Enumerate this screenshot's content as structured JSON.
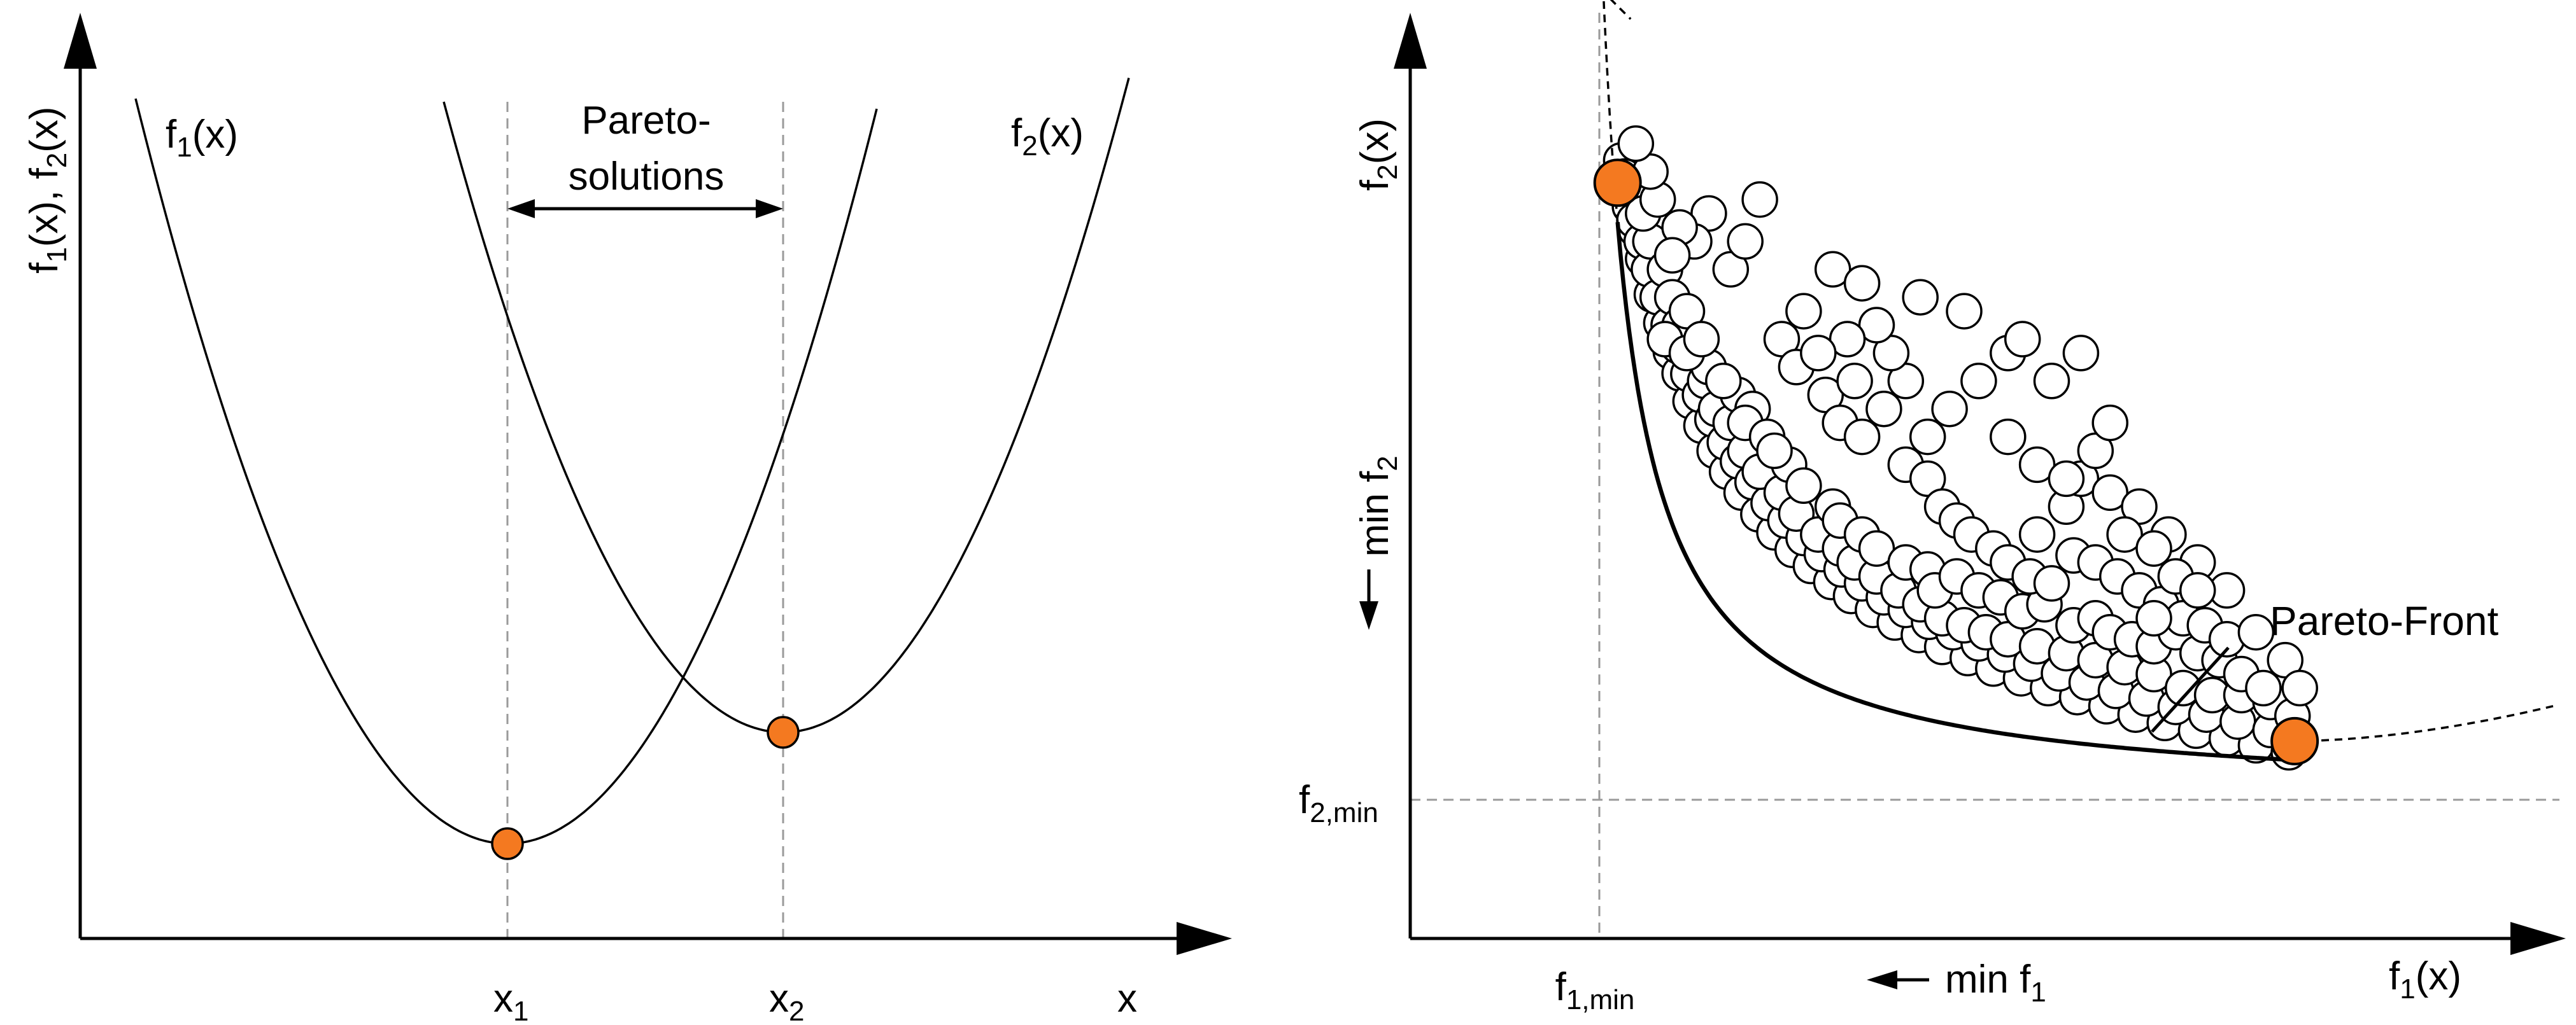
{
  "colors": {
    "highlight": "#F47920",
    "line": "#000000",
    "guide": "#9A9A9A",
    "background": "#FFFFFF"
  },
  "left_panel": {
    "y_axis_label": {
      "f1": "f",
      "s1": "1",
      "mid": "(x), f",
      "s2": "2",
      "end": "(x)"
    },
    "curve1_label": {
      "base": "f",
      "sub": "1",
      "end": "(x)"
    },
    "curve2_label": {
      "base": "f",
      "sub": "2",
      "end": "(x)"
    },
    "pareto_label_line1": "Pareto-",
    "pareto_label_line2": "solutions",
    "x1_label": {
      "base": "x",
      "sub": "1"
    },
    "x2_label": {
      "base": "x",
      "sub": "2"
    },
    "x_axis_label": "x"
  },
  "right_panel": {
    "y_axis_label": {
      "base": "f",
      "sub": "2",
      "end": "(x)"
    },
    "x_axis_label": {
      "base": "f",
      "sub": "1",
      "end": "(x)"
    },
    "min_f2_label": {
      "base": "min f",
      "sub": "2"
    },
    "min_f1_label": {
      "base": "min f",
      "sub": "1"
    },
    "f2min_label": {
      "base": "f",
      "sub": "2,min"
    },
    "f1min_label": {
      "base": "f",
      "sub": "1,min"
    },
    "pareto_front_label": "Pareto-Front"
  },
  "chart_data": {
    "type": "scatter",
    "title": "",
    "xlabel": "f1(x)",
    "ylabel": "f2(x)",
    "xlim": [
      0,
      1
    ],
    "ylim": [
      0,
      1
    ],
    "pareto_front": {
      "a": 0.0566,
      "b": 0.0434,
      "ideal_point": [
        0,
        0
      ]
    },
    "extreme_points": [
      [
        0.025,
        0.884
      ],
      [
        0.953,
        0.084
      ]
    ],
    "points": [
      [
        0.03,
        0.916
      ],
      [
        0.035,
        0.893
      ],
      [
        0.042,
        0.85
      ],
      [
        0.05,
        0.817
      ],
      [
        0.06,
        0.775
      ],
      [
        0.072,
        0.724
      ],
      [
        0.085,
        0.683
      ],
      [
        0.098,
        0.642
      ],
      [
        0.11,
        0.611
      ],
      [
        0.125,
        0.571
      ],
      [
        0.14,
        0.536
      ],
      [
        0.158,
        0.5
      ],
      [
        0.175,
        0.47
      ],
      [
        0.195,
        0.44
      ],
      [
        0.218,
        0.409
      ],
      [
        0.24,
        0.383
      ],
      [
        0.265,
        0.358
      ],
      [
        0.29,
        0.335
      ],
      [
        0.318,
        0.312
      ],
      [
        0.345,
        0.292
      ],
      [
        0.375,
        0.272
      ],
      [
        0.405,
        0.254
      ],
      [
        0.438,
        0.236
      ],
      [
        0.47,
        0.219
      ],
      [
        0.505,
        0.203
      ],
      [
        0.54,
        0.188
      ],
      [
        0.578,
        0.174
      ],
      [
        0.615,
        0.16
      ],
      [
        0.655,
        0.147
      ],
      [
        0.695,
        0.134
      ],
      [
        0.735,
        0.122
      ],
      [
        0.775,
        0.11
      ],
      [
        0.818,
        0.099
      ],
      [
        0.86,
        0.088
      ],
      [
        0.9,
        0.078
      ],
      [
        0.945,
        0.068
      ],
      [
        0.04,
        0.88
      ],
      [
        0.048,
        0.83
      ],
      [
        0.058,
        0.8
      ],
      [
        0.068,
        0.76
      ],
      [
        0.08,
        0.72
      ],
      [
        0.095,
        0.68
      ],
      [
        0.108,
        0.65
      ],
      [
        0.122,
        0.61
      ],
      [
        0.138,
        0.58
      ],
      [
        0.155,
        0.545
      ],
      [
        0.172,
        0.512
      ],
      [
        0.19,
        0.485
      ],
      [
        0.21,
        0.455
      ],
      [
        0.232,
        0.425
      ],
      [
        0.255,
        0.4
      ],
      [
        0.28,
        0.375
      ],
      [
        0.305,
        0.352
      ],
      [
        0.332,
        0.33
      ],
      [
        0.36,
        0.31
      ],
      [
        0.39,
        0.29
      ],
      [
        0.42,
        0.272
      ],
      [
        0.452,
        0.255
      ],
      [
        0.485,
        0.24
      ],
      [
        0.52,
        0.224
      ],
      [
        0.556,
        0.208
      ],
      [
        0.592,
        0.195
      ],
      [
        0.63,
        0.181
      ],
      [
        0.668,
        0.168
      ],
      [
        0.708,
        0.156
      ],
      [
        0.75,
        0.145
      ],
      [
        0.79,
        0.133
      ],
      [
        0.832,
        0.122
      ],
      [
        0.875,
        0.112
      ],
      [
        0.92,
        0.1
      ],
      [
        0.07,
        0.8
      ],
      [
        0.09,
        0.76
      ],
      [
        0.1,
        0.72
      ],
      [
        0.11,
        0.68
      ],
      [
        0.13,
        0.64
      ],
      [
        0.145,
        0.6
      ],
      [
        0.16,
        0.56
      ],
      [
        0.18,
        0.54
      ],
      [
        0.2,
        0.5
      ],
      [
        0.22,
        0.47
      ],
      [
        0.25,
        0.44
      ],
      [
        0.27,
        0.41
      ],
      [
        0.3,
        0.38
      ],
      [
        0.33,
        0.36
      ],
      [
        0.35,
        0.34
      ],
      [
        0.38,
        0.32
      ],
      [
        0.41,
        0.3
      ],
      [
        0.44,
        0.28
      ],
      [
        0.47,
        0.26
      ],
      [
        0.5,
        0.25
      ],
      [
        0.53,
        0.24
      ],
      [
        0.56,
        0.23
      ],
      [
        0.6,
        0.22
      ],
      [
        0.64,
        0.21
      ],
      [
        0.68,
        0.2
      ],
      [
        0.72,
        0.19
      ],
      [
        0.76,
        0.18
      ],
      [
        0.8,
        0.16
      ],
      [
        0.84,
        0.15
      ],
      [
        0.88,
        0.15
      ],
      [
        0.92,
        0.14
      ],
      [
        0.95,
        0.12
      ],
      [
        0.06,
        0.84
      ],
      [
        0.12,
        0.7
      ],
      [
        0.09,
        0.66
      ],
      [
        0.15,
        0.62
      ],
      [
        0.19,
        0.58
      ],
      [
        0.21,
        0.56
      ],
      [
        0.12,
        0.64
      ],
      [
        0.14,
        0.66
      ],
      [
        0.17,
        0.6
      ],
      [
        0.2,
        0.54
      ],
      [
        0.23,
        0.52
      ],
      [
        0.26,
        0.48
      ],
      [
        0.28,
        0.45
      ],
      [
        0.24,
        0.5
      ],
      [
        0.32,
        0.42
      ],
      [
        0.33,
        0.4
      ],
      [
        0.36,
        0.38
      ],
      [
        0.38,
        0.36
      ],
      [
        0.42,
        0.34
      ],
      [
        0.45,
        0.33
      ],
      [
        0.46,
        0.3
      ],
      [
        0.49,
        0.32
      ],
      [
        0.52,
        0.3
      ],
      [
        0.55,
        0.29
      ],
      [
        0.58,
        0.27
      ],
      [
        0.61,
        0.28
      ],
      [
        0.65,
        0.25
      ],
      [
        0.68,
        0.26
      ],
      [
        0.7,
        0.24
      ],
      [
        0.73,
        0.23
      ],
      [
        0.76,
        0.22
      ],
      [
        0.79,
        0.24
      ],
      [
        0.82,
        0.21
      ],
      [
        0.85,
        0.2
      ],
      [
        0.88,
        0.18
      ],
      [
        0.91,
        0.16
      ],
      [
        0.25,
        0.66
      ],
      [
        0.27,
        0.62
      ],
      [
        0.31,
        0.58
      ],
      [
        0.33,
        0.54
      ],
      [
        0.35,
        0.6
      ],
      [
        0.36,
        0.52
      ],
      [
        0.39,
        0.56
      ],
      [
        0.42,
        0.48
      ],
      [
        0.45,
        0.46
      ],
      [
        0.47,
        0.42
      ],
      [
        0.49,
        0.4
      ],
      [
        0.51,
        0.38
      ],
      [
        0.54,
        0.36
      ],
      [
        0.56,
        0.34
      ],
      [
        0.59,
        0.32
      ],
      [
        0.62,
        0.31
      ],
      [
        0.65,
        0.35
      ],
      [
        0.68,
        0.34
      ],
      [
        0.71,
        0.32
      ],
      [
        0.74,
        0.3
      ],
      [
        0.77,
        0.28
      ],
      [
        0.8,
        0.26
      ],
      [
        0.83,
        0.25
      ],
      [
        0.86,
        0.23
      ],
      [
        0.6,
        0.38
      ],
      [
        0.64,
        0.42
      ],
      [
        0.66,
        0.46
      ],
      [
        0.68,
        0.5
      ],
      [
        0.7,
        0.54
      ],
      [
        0.62,
        0.6
      ],
      [
        0.56,
        0.64
      ],
      [
        0.52,
        0.6
      ],
      [
        0.48,
        0.56
      ],
      [
        0.45,
        0.52
      ],
      [
        0.42,
        0.6
      ],
      [
        0.4,
        0.64
      ],
      [
        0.38,
        0.68
      ],
      [
        0.34,
        0.66
      ],
      [
        0.3,
        0.64
      ],
      [
        0.28,
        0.7
      ],
      [
        0.32,
        0.76
      ],
      [
        0.36,
        0.74
      ],
      [
        0.44,
        0.72
      ],
      [
        0.5,
        0.7
      ],
      [
        0.58,
        0.66
      ],
      [
        0.66,
        0.64
      ],
      [
        0.56,
        0.52
      ],
      [
        0.6,
        0.48
      ],
      [
        0.64,
        0.46
      ],
      [
        0.7,
        0.44
      ],
      [
        0.74,
        0.42
      ],
      [
        0.78,
        0.38
      ],
      [
        0.82,
        0.34
      ],
      [
        0.86,
        0.3
      ],
      [
        0.9,
        0.24
      ],
      [
        0.94,
        0.2
      ],
      [
        0.96,
        0.16
      ],
      [
        0.72,
        0.38
      ],
      [
        0.76,
        0.36
      ],
      [
        0.79,
        0.32
      ],
      [
        0.82,
        0.3
      ],
      [
        0.76,
        0.26
      ],
      [
        0.18,
        0.76
      ],
      [
        0.2,
        0.8
      ],
      [
        0.22,
        0.86
      ],
      [
        0.15,
        0.84
      ],
      [
        0.13,
        0.8
      ],
      [
        0.11,
        0.82
      ],
      [
        0.08,
        0.86
      ],
      [
        0.07,
        0.9
      ],
      [
        0.05,
        0.94
      ],
      [
        0.1,
        0.78
      ]
    ]
  }
}
